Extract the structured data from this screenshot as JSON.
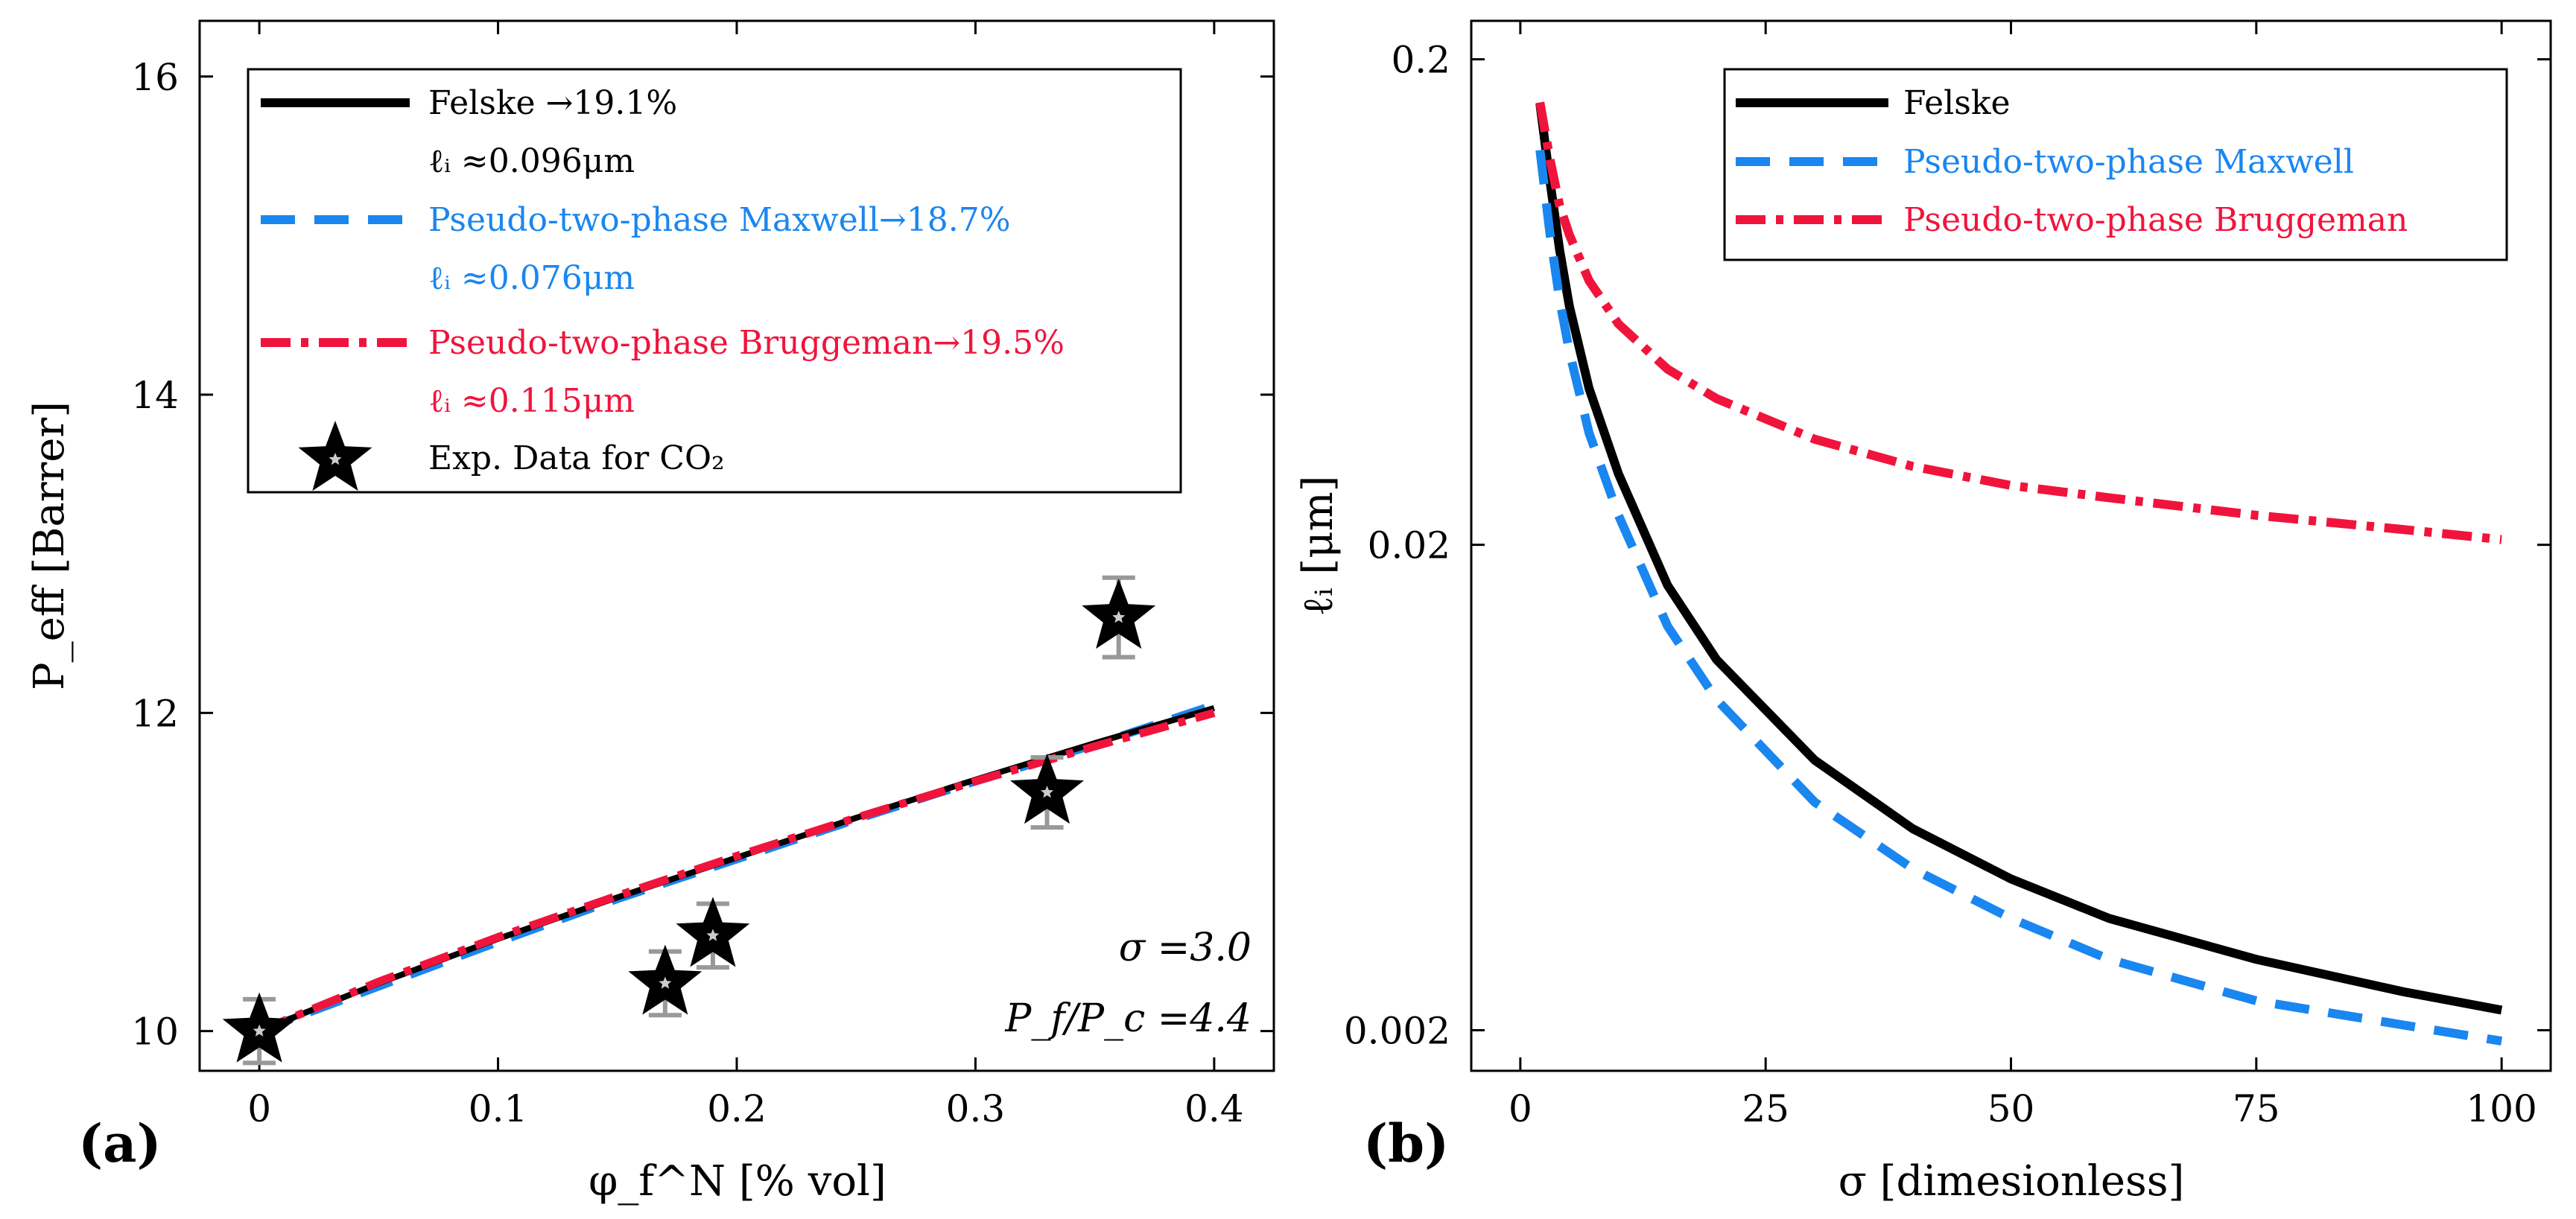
{
  "colors": {
    "felske": "#000000",
    "maxwell": "#1a86f0",
    "bruggeman": "#f0143c",
    "errorbar": "#999999",
    "star_center": "#cccccc"
  },
  "chart_data": [
    {
      "panel": "(a)",
      "type": "line",
      "xlabel": "φ_f^N [% vol]",
      "ylabel": "P_eff [Barrer]",
      "xlim": [
        -0.025,
        0.425
      ],
      "ylim": [
        9.75,
        16.35
      ],
      "xticks": [
        0,
        0.1,
        0.2,
        0.3,
        0.4
      ],
      "xtick_labels": [
        "0",
        "0.1",
        "0.2",
        "0.3",
        "0.4"
      ],
      "yticks": [
        10,
        12,
        14,
        16
      ],
      "ytick_labels": [
        "10",
        "12",
        "14",
        "16"
      ],
      "x": [
        0,
        0.05,
        0.1,
        0.15,
        0.2,
        0.25,
        0.3,
        0.35,
        0.4
      ],
      "series": [
        {
          "name": "Felske",
          "style": "solid",
          "color_key": "felske",
          "values": [
            10.0,
            10.3,
            10.58,
            10.84,
            11.09,
            11.34,
            11.58,
            11.81,
            12.03
          ]
        },
        {
          "name": "Pseudo-two-phase Maxwell",
          "style": "dash",
          "color_key": "maxwell",
          "values": [
            10.0,
            10.28,
            10.56,
            10.83,
            11.08,
            11.33,
            11.57,
            11.8,
            12.05
          ]
        },
        {
          "name": "Pseudo-two-phase Bruggeman",
          "style": "dashdot",
          "color_key": "bruggeman",
          "values": [
            10.0,
            10.31,
            10.59,
            10.85,
            11.1,
            11.34,
            11.57,
            11.79,
            12.0
          ]
        }
      ],
      "scatter": {
        "name": "Exp. Data for CO₂",
        "x": [
          0,
          0.17,
          0.19,
          0.33,
          0.36
        ],
        "y": [
          10.0,
          10.3,
          10.6,
          11.5,
          12.6
        ],
        "yerr": [
          0.2,
          0.2,
          0.2,
          0.22,
          0.25
        ]
      },
      "legend": {
        "placement": "top-left",
        "entries": [
          {
            "label": "Felske →19.1%",
            "sub": "ℓᵢ ≈0.096μm",
            "color_key": "felske",
            "style": "solid"
          },
          {
            "label": "Pseudo-two-phase Maxwell→18.7%",
            "sub": "ℓᵢ ≈0.076μm",
            "color_key": "maxwell",
            "style": "dash"
          },
          {
            "label": "Pseudo-two-phase Bruggeman→19.5%",
            "sub": "ℓᵢ ≈0.115μm",
            "color_key": "bruggeman",
            "style": "dashdot"
          },
          {
            "label": "Exp. Data for CO₂",
            "style": "star"
          }
        ]
      },
      "annotations": [
        "σ =3.0",
        "P_f/P_c =4.4"
      ]
    },
    {
      "panel": "(b)",
      "type": "line",
      "xlabel": "σ [dimesionless]",
      "ylabel": "ℓᵢ [μm]",
      "yscale": "log",
      "xlim": [
        -5,
        105
      ],
      "ylim": [
        0.00165,
        0.24
      ],
      "xticks": [
        0,
        25,
        50,
        75,
        100
      ],
      "xtick_labels": [
        "0",
        "25",
        "50",
        "75",
        "100"
      ],
      "yticks": [
        0.002,
        0.02,
        0.2
      ],
      "ytick_labels": [
        "0.002",
        "0.02",
        "0.2"
      ],
      "x": [
        2,
        3,
        4,
        5,
        7,
        10,
        15,
        20,
        30,
        40,
        50,
        60,
        75,
        90,
        100
      ],
      "series": [
        {
          "name": "Felske",
          "style": "solid",
          "color_key": "felske",
          "values": [
            0.162,
            0.113,
            0.081,
            0.062,
            0.042,
            0.028,
            0.0165,
            0.0116,
            0.0072,
            0.0052,
            0.0041,
            0.0034,
            0.0028,
            0.0024,
            0.0022
          ]
        },
        {
          "name": "Pseudo-two-phase Maxwell",
          "style": "dash",
          "color_key": "maxwell",
          "values": [
            0.13,
            0.088,
            0.064,
            0.05,
            0.034,
            0.023,
            0.0136,
            0.0096,
            0.0059,
            0.0043,
            0.0034,
            0.0028,
            0.0023,
            0.00205,
            0.0019
          ]
        },
        {
          "name": "Pseudo-two-phase Bruggeman",
          "style": "dashdot",
          "color_key": "bruggeman",
          "values": [
            0.163,
            0.125,
            0.1,
            0.087,
            0.07,
            0.057,
            0.046,
            0.04,
            0.033,
            0.029,
            0.0265,
            0.025,
            0.023,
            0.0215,
            0.0205
          ]
        }
      ],
      "legend": {
        "placement": "top-right",
        "entries": [
          {
            "label": "Felske",
            "color_key": "felske",
            "style": "solid"
          },
          {
            "label": "Pseudo-two-phase Maxwell",
            "color_key": "maxwell",
            "style": "dash"
          },
          {
            "label": "Pseudo-two-phase Bruggeman",
            "color_key": "bruggeman",
            "style": "dashdot"
          }
        ]
      }
    }
  ]
}
